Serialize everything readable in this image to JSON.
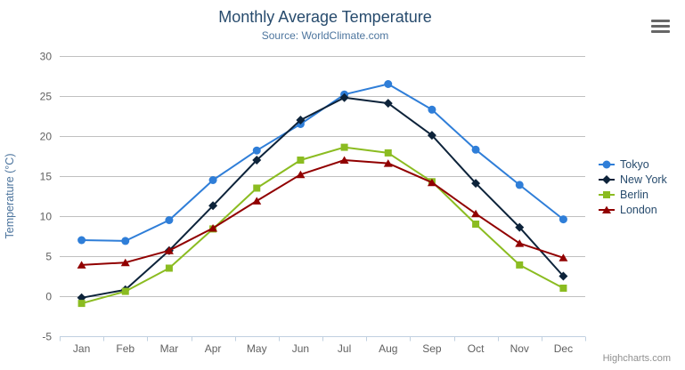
{
  "header": {
    "title": "Monthly Average Temperature",
    "subtitle": "Source: WorldClimate.com"
  },
  "toolbar": {
    "menu_icon": "hamburger-icon"
  },
  "credits": {
    "label": "Highcharts.com"
  },
  "chart_data": {
    "type": "line",
    "title": "Monthly Average Temperature",
    "subtitle": "Source: WorldClimate.com",
    "categories": [
      "Jan",
      "Feb",
      "Mar",
      "Apr",
      "May",
      "Jun",
      "Jul",
      "Aug",
      "Sep",
      "Oct",
      "Nov",
      "Dec"
    ],
    "xlabel": "",
    "ylabel": "Temperature (°C)",
    "ylim": [
      -5,
      30
    ],
    "ytick_step": 5,
    "grid": true,
    "legend_position": "right",
    "series": [
      {
        "name": "Tokyo",
        "color": "#2f7ed8",
        "marker": "circle",
        "values": [
          7.0,
          6.9,
          9.5,
          14.5,
          18.2,
          21.5,
          25.2,
          26.5,
          23.3,
          18.3,
          13.9,
          9.6
        ]
      },
      {
        "name": "New York",
        "color": "#0d233a",
        "marker": "diamond",
        "values": [
          -0.2,
          0.8,
          5.7,
          11.3,
          17.0,
          22.0,
          24.8,
          24.1,
          20.1,
          14.1,
          8.6,
          2.5
        ]
      },
      {
        "name": "Berlin",
        "color": "#8bbc21",
        "marker": "square",
        "values": [
          -0.9,
          0.6,
          3.5,
          8.4,
          13.5,
          17.0,
          18.6,
          17.9,
          14.3,
          9.0,
          3.9,
          1.0
        ]
      },
      {
        "name": "London",
        "color": "#910000",
        "marker": "triangle",
        "values": [
          3.9,
          4.2,
          5.7,
          8.5,
          11.9,
          15.2,
          17.0,
          16.6,
          14.2,
          10.3,
          6.6,
          4.8
        ]
      }
    ]
  },
  "colors": {
    "title": "#274b6d",
    "subtitle": "#4d759e",
    "axis_title": "#4d759e",
    "tick_label": "#606060",
    "grid_line": "#c0c0c0",
    "axis_line": "#c0d0e0",
    "legend_text": "#274b6d",
    "credits": "#909090"
  }
}
